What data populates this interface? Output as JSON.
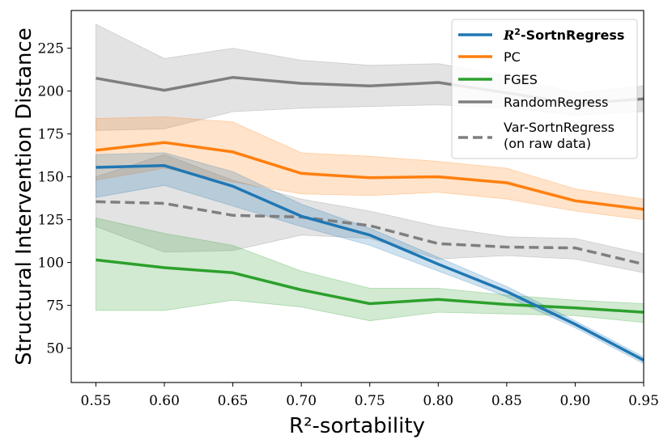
{
  "chart_data": {
    "type": "line",
    "title": "",
    "xlabel": "R²-sortability",
    "ylabel": "Structural Intervention Distance",
    "x": [
      0.55,
      0.6,
      0.65,
      0.7,
      0.75,
      0.8,
      0.85,
      0.9,
      0.95
    ],
    "xlim": [
      0.532,
      0.95
    ],
    "ylim": [
      30,
      247
    ],
    "xticks": [
      "0.55",
      "0.60",
      "0.65",
      "0.70",
      "0.75",
      "0.80",
      "0.85",
      "0.90",
      "0.95"
    ],
    "yticks": [
      "50",
      "75",
      "100",
      "125",
      "150",
      "175",
      "200",
      "225"
    ],
    "ytick_values": [
      50,
      75,
      100,
      125,
      150,
      175,
      200,
      225
    ],
    "legend_position": "top-right",
    "series": [
      {
        "name": "R²-SortnRegress",
        "legend_prefix": "R",
        "legend_sup": "2",
        "legend_suffix": "-SortnRegress",
        "color": "#1f77b4",
        "dash": "solid",
        "values": [
          155.5,
          156.5,
          144.5,
          127,
          116,
          99,
          83,
          64,
          43
        ],
        "lower": [
          138,
          145,
          133,
          121,
          110,
          95,
          80,
          62,
          41
        ],
        "upper": [
          163,
          164,
          153,
          134,
          120,
          103,
          86,
          66,
          45
        ]
      },
      {
        "name": "PC",
        "color": "#ff7f0e",
        "dash": "solid",
        "values": [
          165.5,
          170,
          164.5,
          152,
          149.5,
          150,
          146.5,
          136,
          131
        ],
        "lower": [
          148,
          155,
          147,
          140,
          139,
          141,
          137,
          130,
          125
        ],
        "upper": [
          184,
          185,
          182,
          164,
          162,
          159,
          155,
          143,
          137
        ]
      },
      {
        "name": "FGES",
        "color": "#2ca02c",
        "dash": "solid",
        "values": [
          101.5,
          97,
          94,
          84,
          76,
          78.5,
          75.5,
          73.5,
          71
        ],
        "lower": [
          72,
          72,
          78,
          74,
          66,
          71,
          70,
          69,
          65
        ],
        "upper": [
          126,
          117,
          110,
          95,
          85,
          85,
          81,
          78,
          76
        ]
      },
      {
        "name": "RandomRegress",
        "color": "#7f7f7f",
        "dash": "solid",
        "values": [
          207.5,
          200.5,
          208,
          204.5,
          203,
          205,
          199,
          192.5,
          195.5
        ],
        "lower": [
          177,
          178,
          188,
          190,
          191,
          192,
          190,
          186,
          188
        ],
        "upper": [
          239,
          219,
          225,
          218,
          215,
          216,
          209,
          199,
          203
        ]
      },
      {
        "name": "Var-SortnRegress\n(on raw data)",
        "legend_line1": "Var-SortnRegress",
        "legend_line2": "(on raw data)",
        "color": "#7f7f7f",
        "dash": "dashed",
        "values": [
          135.5,
          134.5,
          127.5,
          126.5,
          121.5,
          111,
          109,
          108.5,
          99
        ],
        "lower": [
          121,
          106,
          107,
          116,
          114,
          102,
          104,
          102,
          94
        ],
        "upper": [
          150,
          163,
          148,
          137,
          130,
          121,
          115,
          114,
          105
        ]
      }
    ]
  }
}
